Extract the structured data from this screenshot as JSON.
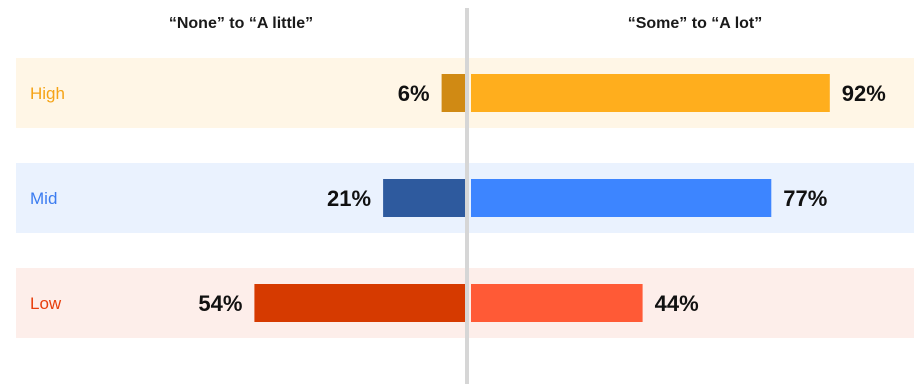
{
  "chart_data": {
    "type": "bar",
    "subtype": "diverging",
    "title": "",
    "xlabel": "",
    "ylabel": "",
    "grid": false,
    "legend": "none",
    "xlim": [
      -70,
      100
    ],
    "column_headers": {
      "left": "“None” to “A little”",
      "right": "“Some” to “A lot”"
    },
    "categories": [
      "High",
      "Mid",
      "Low"
    ],
    "series": [
      {
        "name": "“None” to “A little”",
        "side": "left",
        "values": [
          6,
          21,
          54
        ],
        "labels": [
          "6%",
          "21%",
          "54%"
        ]
      },
      {
        "name": "“Some” to “A lot”",
        "side": "right",
        "values": [
          92,
          77,
          44
        ],
        "labels": [
          "92%",
          "77%",
          "44%"
        ]
      }
    ],
    "rows": [
      {
        "label": "High",
        "label_color": "#F5A316",
        "band_color": "#FFF6E6",
        "left_color": "#D08A14",
        "right_color": "#FFAE1D"
      },
      {
        "label": "Mid",
        "label_color": "#3B7CF0",
        "band_color": "#EAF2FE",
        "left_color": "#2E5A9E",
        "right_color": "#3D85FF"
      },
      {
        "label": "Low",
        "label_color": "#E83E0C",
        "band_color": "#FDEEEA",
        "left_color": "#D63A00",
        "right_color": "#FF5A36"
      }
    ],
    "divider_color": "#D6D6D6"
  }
}
